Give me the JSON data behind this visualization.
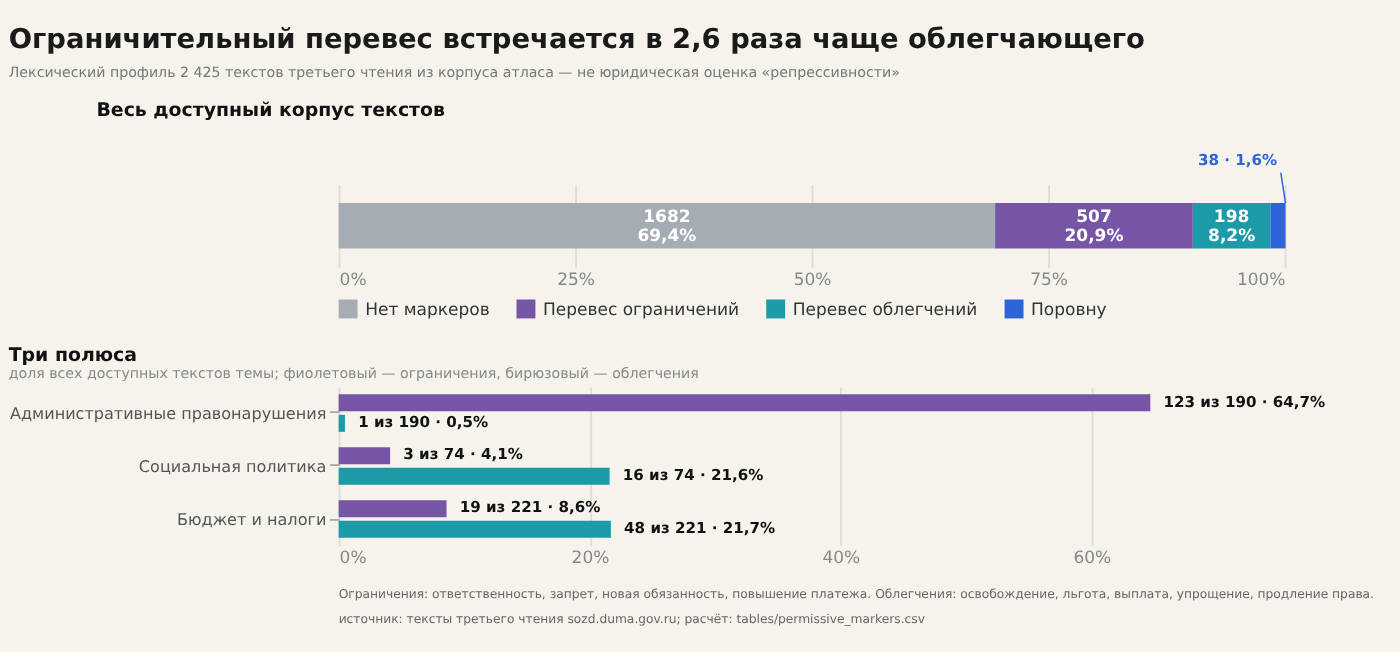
{
  "chart_data": [
    {
      "type": "bar",
      "orientation": "horizontal",
      "stacked": true,
      "title": "Ограничительный перевес встречается в 2,6 раза чаще облегчающего",
      "subtitle": "Лексический профиль 2 425 текстов третьего чтения из корпуса атласа — не юридическая оценка «репрессивности»",
      "annotations": [
        "Весь доступный корпус текстов"
      ],
      "categories": [
        null
      ],
      "xlim": [
        0,
        100
      ],
      "xticks": [
        {
          "value": 0,
          "label": "0%"
        },
        {
          "value": 25,
          "label": "25%"
        },
        {
          "value": 50,
          "label": "50%"
        },
        {
          "value": 75,
          "label": "75%"
        },
        {
          "value": 100,
          "label": "100%"
        }
      ],
      "grid": "x",
      "legend": "bottom",
      "tick_labels": "x",
      "series": [
        {
          "name": "Нет маркеров",
          "color": "#a5acb4",
          "values": [
            69.4
          ],
          "value_labels": [
            "1682\n69,4%"
          ]
        },
        {
          "name": "Перевес ограничений",
          "color": "#7655a6",
          "values": [
            20.9
          ],
          "value_labels": [
            "507\n20,9%"
          ]
        },
        {
          "name": "Перевес облегчений",
          "color": "#1c9aa8",
          "values": [
            8.2
          ],
          "value_labels": [
            "198\n8,2%"
          ]
        },
        {
          "name": "Поровну",
          "color": "#2f64d8",
          "values": [
            1.6
          ],
          "value_labels": [
            "38 · 1,6%"
          ]
        }
      ]
    },
    {
      "type": "bar",
      "orientation": "horizontal",
      "title": "Три полюса",
      "subtitle": "доля всех доступных текстов темы; фиолетовый — ограничения, бирюзовый — облегчения",
      "annotations": [
        "Ограничения: ответственность, запрет, новая обязанность, повышение платежа.  Облегчения: освобождение, льгота, выплата, упрощение, продление права.",
        "источник: тексты третьего чтения sozd.duma.gov.ru; расчёт: tables/permissive_markers.csv"
      ],
      "categories": [
        "Административные правонарушения",
        "Социальная политика",
        "Бюджет и налоги"
      ],
      "xlim": [
        0,
        84
      ],
      "xticks": [
        {
          "value": 0,
          "label": "0%"
        },
        {
          "value": 20,
          "label": "20%"
        },
        {
          "value": 40,
          "label": "40%"
        },
        {
          "value": 60,
          "label": "60%"
        }
      ],
      "grid": "x",
      "legend": false,
      "series": [
        {
          "color": "#7655a6",
          "values": [
            64.7,
            4.1,
            8.6
          ],
          "value_labels": [
            "123 из 190 · 64,7%",
            "3 из 74 · 4,1%",
            "19 из 221 · 8,6%"
          ]
        },
        {
          "color": "#1c9aa8",
          "values": [
            0.5,
            21.6,
            21.7
          ],
          "value_labels": [
            "1 из 190 · 0,5%",
            "16 из 74 · 21,6%",
            "48 из 221 · 21,7%"
          ]
        }
      ]
    }
  ]
}
